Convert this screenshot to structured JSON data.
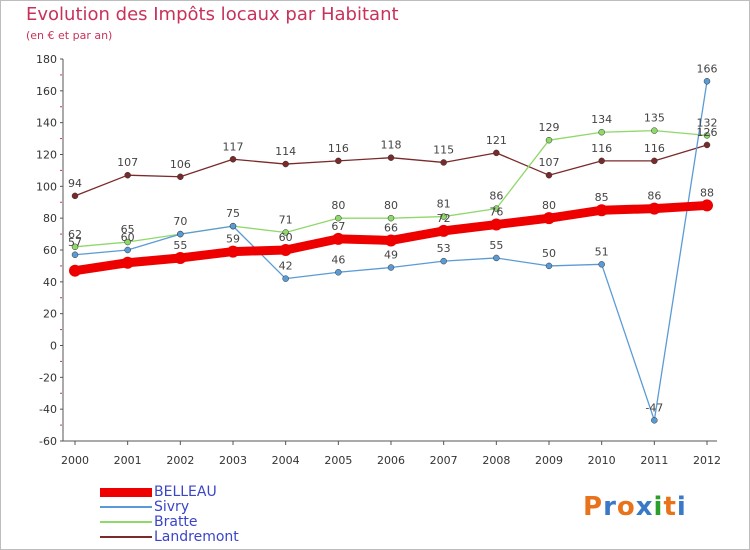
{
  "title": "Evolution des Impôts locaux par Habitant",
  "subtitle": "(en € et par an)",
  "chart_data": {
    "type": "line",
    "title": "Evolution des Impôts locaux par Habitant",
    "subtitle": "(en € et par an)",
    "xlabel": "",
    "ylabel": "",
    "categories": [
      "2000",
      "2001",
      "2002",
      "2003",
      "2004",
      "2005",
      "2006",
      "2007",
      "2008",
      "2009",
      "2010",
      "2011",
      "2012"
    ],
    "ylim": [
      -60,
      180
    ],
    "yticks": [
      -60,
      -40,
      -20,
      0,
      20,
      40,
      60,
      80,
      100,
      120,
      140,
      160,
      180
    ],
    "grid": false,
    "legend_position": "bottom-left",
    "series": [
      {
        "name": "BELLEAU",
        "color": "#ee0000",
        "values": [
          47,
          52,
          55,
          59,
          60,
          67,
          66,
          72,
          76,
          80,
          85,
          86,
          88
        ],
        "labels": [
          "",
          "",
          "",
          "",
          "",
          "",
          "",
          "",
          "",
          "80",
          "85",
          "86",
          "88"
        ]
      },
      {
        "name": "Sivry",
        "color": "#5b9bd5",
        "values": [
          57,
          60,
          70,
          75,
          42,
          46,
          49,
          53,
          55,
          50,
          51,
          -47,
          166
        ],
        "labels": [
          "57",
          "60",
          "",
          "",
          "42",
          "46",
          "49",
          "53",
          "55",
          "50",
          "51",
          "-47",
          "166"
        ]
      },
      {
        "name": "Bratte",
        "color": "#8fd86a",
        "values": [
          62,
          65,
          70,
          75,
          71,
          80,
          80,
          81,
          86,
          129,
          134,
          135,
          132
        ],
        "labels": [
          "62",
          "65",
          "70",
          "75",
          "71",
          "80",
          "80",
          "81",
          "86",
          "129",
          "134",
          "135",
          "132"
        ]
      },
      {
        "name": "Landremont",
        "color": "#7a2a2a",
        "values": [
          94,
          107,
          106,
          117,
          114,
          116,
          118,
          115,
          121,
          107,
          116,
          116,
          126
        ],
        "labels": [
          "94",
          "107",
          "106",
          "117",
          "114",
          "116",
          "118",
          "115",
          "121",
          "107",
          "116",
          "116",
          "126"
        ]
      }
    ],
    "extra_labels": [
      "55",
      "59",
      "60",
      "67",
      "66",
      "72",
      "76"
    ]
  },
  "legend": [
    {
      "label": "BELLEAU",
      "color": "#ee0000",
      "width": 9
    },
    {
      "label": "Sivry",
      "color": "#5b9bd5",
      "width": 2
    },
    {
      "label": "Bratte",
      "color": "#8fd86a",
      "width": 2
    },
    {
      "label": "Landremont",
      "color": "#7a2a2a",
      "width": 2
    }
  ],
  "logo": {
    "letters": [
      "P",
      "r",
      "o",
      "x",
      "i",
      "t",
      "i"
    ],
    "colors": [
      "#e8731a",
      "#3a78c8",
      "#e8731a",
      "#3a78c8",
      "#2aa02a",
      "#e8731a",
      "#3a78c8"
    ]
  }
}
